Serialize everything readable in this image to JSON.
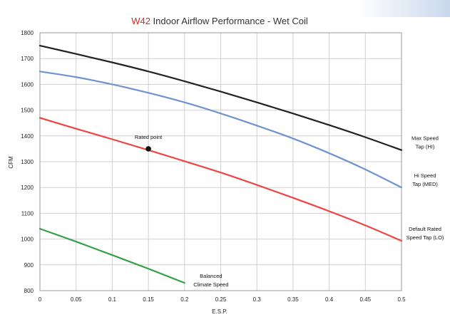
{
  "chart_data": {
    "type": "line",
    "title_model": "W42",
    "title_rest": " Indoor Airflow Performance - Wet Coil",
    "xlabel": "E.S.P.",
    "ylabel": "CFM",
    "xlim": [
      0,
      0.5
    ],
    "ylim": [
      800,
      1800
    ],
    "xticks": [
      "0",
      "0.05",
      "0.1",
      "0.15",
      "0.2",
      "0.25",
      "0.3",
      "0.35",
      "0.4",
      "0.45",
      "0.5"
    ],
    "yticks": [
      "800",
      "900",
      "1000",
      "1100",
      "1200",
      "1300",
      "1400",
      "1500",
      "1600",
      "1700",
      "1800"
    ],
    "grid": true,
    "series": [
      {
        "name_lines": [
          "Max Speed",
          "Tap (HI)"
        ],
        "color": "#222222",
        "x": [
          0,
          0.05,
          0.1,
          0.15,
          0.2,
          0.25,
          0.3,
          0.35,
          0.4,
          0.45,
          0.5
        ],
        "y": [
          1750,
          1718,
          1685,
          1650,
          1612,
          1572,
          1530,
          1487,
          1442,
          1395,
          1345
        ]
      },
      {
        "name_lines": [
          "Hi Speed",
          "Tap (MED)"
        ],
        "color": "#6f93cf",
        "x": [
          0,
          0.05,
          0.1,
          0.15,
          0.2,
          0.25,
          0.3,
          0.35,
          0.4,
          0.45,
          0.5
        ],
        "y": [
          1650,
          1628,
          1600,
          1567,
          1530,
          1487,
          1440,
          1390,
          1333,
          1270,
          1200
        ]
      },
      {
        "name_lines": [
          "Default Rated",
          "Speed Tap (LO)"
        ],
        "color": "#ee4444",
        "x": [
          0,
          0.05,
          0.1,
          0.15,
          0.2,
          0.25,
          0.3,
          0.35,
          0.4,
          0.45,
          0.5
        ],
        "y": [
          1470,
          1428,
          1387,
          1345,
          1302,
          1258,
          1210,
          1160,
          1108,
          1053,
          993
        ]
      },
      {
        "name_lines": [
          "Balanced",
          "Climate Speed"
        ],
        "color": "#33a047",
        "x": [
          0,
          0.05,
          0.1,
          0.15,
          0.2
        ],
        "y": [
          1040,
          990,
          938,
          885,
          830
        ]
      }
    ],
    "annotation": {
      "label": "Rated point",
      "x": 0.15,
      "y": 1350,
      "color": "#111111"
    }
  }
}
